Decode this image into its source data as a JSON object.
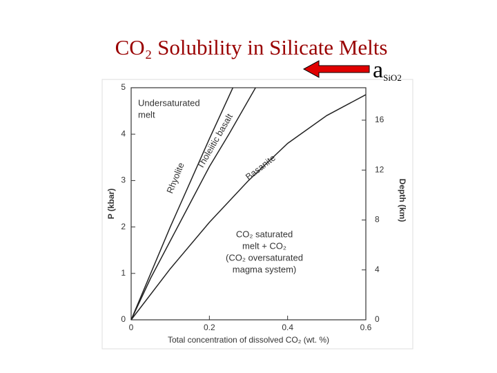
{
  "chart_data": {
    "type": "line",
    "title": "CO₂ Solubility in Silicate Melts",
    "title_color": "#990000",
    "marker": {
      "base": "a",
      "sub": "SiO2"
    },
    "xlabel": "Total concentration of dissolved CO₂ (wt. %)",
    "ylabel": "P (kbar)",
    "y2label": "Depth (km)",
    "xlim": [
      0,
      0.6
    ],
    "xticks": [
      0,
      0.2,
      0.4,
      0.6
    ],
    "ylim": [
      0,
      5
    ],
    "yticks": [
      0,
      1,
      2,
      3,
      4,
      5
    ],
    "y2lim": [
      0,
      18.6
    ],
    "y2ticks": [
      0,
      4,
      8,
      12,
      16
    ],
    "series": [
      {
        "name": "Rhyolite",
        "color": "#222222",
        "x": [
          0,
          0.05,
          0.1,
          0.15,
          0.2,
          0.26
        ],
        "values": [
          0,
          1.0,
          2.0,
          2.95,
          3.9,
          5
        ]
      },
      {
        "name": "Tholeiitic basalt",
        "color": "#222222",
        "x": [
          0,
          0.05,
          0.1,
          0.15,
          0.2,
          0.25,
          0.318
        ],
        "values": [
          0,
          0.9,
          1.7,
          2.5,
          3.3,
          4.0,
          5
        ]
      },
      {
        "name": "Basanite",
        "color": "#222222",
        "x": [
          0,
          0.1,
          0.2,
          0.3,
          0.4,
          0.5,
          0.6
        ],
        "values": [
          0,
          1.1,
          2.1,
          3.0,
          3.8,
          4.4,
          4.85
        ]
      }
    ],
    "annotations": [
      {
        "lines": [
          "Undersaturated",
          "melt"
        ]
      },
      {
        "lines": [
          "CO₂ saturated",
          "melt + CO₂",
          "(CO₂ oversaturated",
          "magma system)"
        ]
      }
    ]
  }
}
